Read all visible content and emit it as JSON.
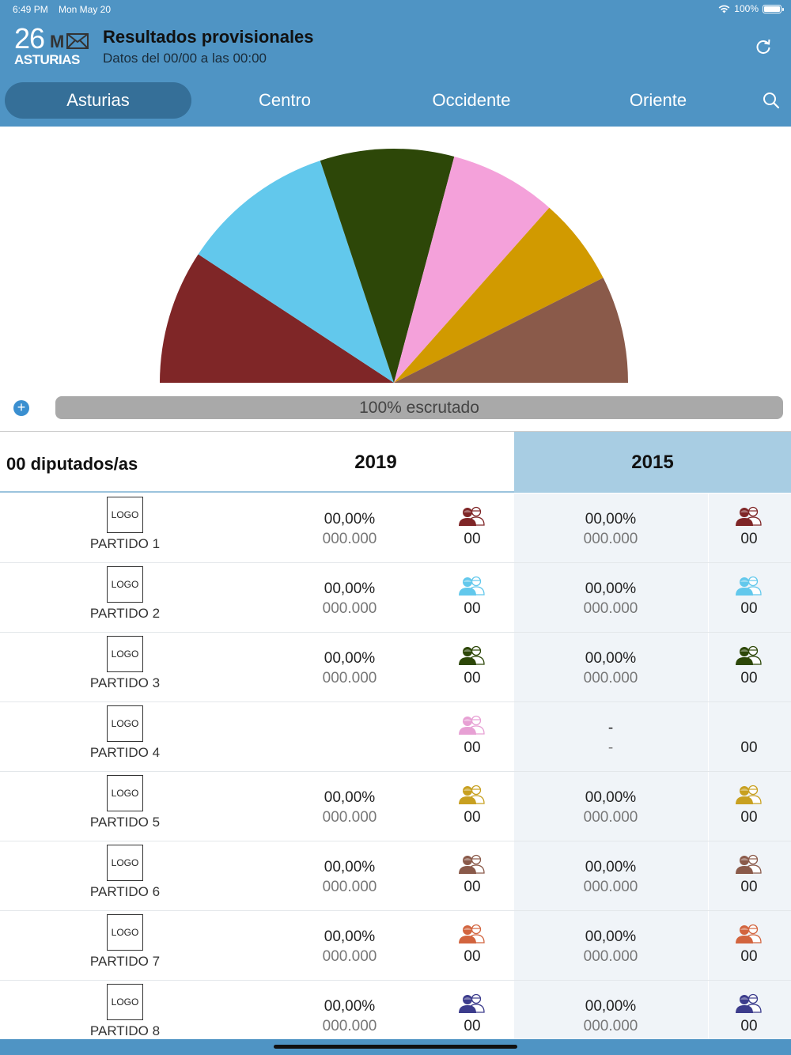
{
  "status": {
    "time": "6:49 PM",
    "date": "Mon May 20",
    "battery": "100%"
  },
  "brand": {
    "number": "26",
    "letter": "M",
    "region": "ASTURIAS"
  },
  "header": {
    "title": "Resultados provisionales",
    "subtitle": "Datos del 00/00 a las 00:00"
  },
  "tabs": [
    {
      "label": "Asturias",
      "active": true
    },
    {
      "label": "Centro",
      "active": false
    },
    {
      "label": "Occidente",
      "active": false
    },
    {
      "label": "Oriente",
      "active": false
    }
  ],
  "chart_data": {
    "type": "pie",
    "variant": "semicircle",
    "slices": [
      {
        "color": "#7f2627",
        "fraction": 0.185
      },
      {
        "color": "#62c8ec",
        "fraction": 0.213
      },
      {
        "color": "#2d4708",
        "fraction": 0.185
      },
      {
        "color": "#f4a1da",
        "fraction": 0.148
      },
      {
        "color": "#d19a00",
        "fraction": 0.121
      },
      {
        "color": "#8a5a4a",
        "fraction": 0.148
      }
    ]
  },
  "progress": {
    "label": "100% escrutado",
    "value": 100
  },
  "table": {
    "seats_header": "00 diputados/as",
    "year1": "2019",
    "year2": "2015",
    "logo_text": "LOGO",
    "rows": [
      {
        "name": "PARTIDO 1",
        "color": "#7f2627",
        "pct2019": "00,00%",
        "votes2019": "000.000",
        "seats2019": "00",
        "pct2015": "00,00%",
        "votes2015": "000.000",
        "seats2015": "00",
        "icon2015": true
      },
      {
        "name": "PARTIDO 2",
        "color": "#62c8ec",
        "pct2019": "00,00%",
        "votes2019": "000.000",
        "seats2019": "00",
        "pct2015": "00,00%",
        "votes2015": "000.000",
        "seats2015": "00",
        "icon2015": true
      },
      {
        "name": "PARTIDO 3",
        "color": "#2d4708",
        "pct2019": "00,00%",
        "votes2019": "000.000",
        "seats2019": "00",
        "pct2015": "00,00%",
        "votes2015": "000.000",
        "seats2015": "00",
        "icon2015": true
      },
      {
        "name": "PARTIDO 4",
        "color": "#e7a0d4",
        "pct2019": "",
        "votes2019": "",
        "seats2019": "00",
        "pct2015": "-",
        "votes2015": "-",
        "seats2015": "00",
        "icon2015": false
      },
      {
        "name": "PARTIDO 5",
        "color": "#c8a020",
        "pct2019": "00,00%",
        "votes2019": "000.000",
        "seats2019": "00",
        "pct2015": "00,00%",
        "votes2015": "000.000",
        "seats2015": "00",
        "icon2015": true
      },
      {
        "name": "PARTIDO 6",
        "color": "#8a5a4a",
        "pct2019": "00,00%",
        "votes2019": "000.000",
        "seats2019": "00",
        "pct2015": "00,00%",
        "votes2015": "000.000",
        "seats2015": "00",
        "icon2015": true
      },
      {
        "name": "PARTIDO 7",
        "color": "#d2643e",
        "pct2019": "00,00%",
        "votes2019": "000.000",
        "seats2019": "00",
        "pct2015": "00,00%",
        "votes2015": "000.000",
        "seats2015": "00",
        "icon2015": true
      },
      {
        "name": "PARTIDO 8",
        "color": "#3c3c8c",
        "pct2019": "00,00%",
        "votes2019": "000.000",
        "seats2019": "00",
        "pct2015": "00,00%",
        "votes2015": "000.000",
        "seats2015": "00",
        "icon2015": true
      }
    ]
  }
}
